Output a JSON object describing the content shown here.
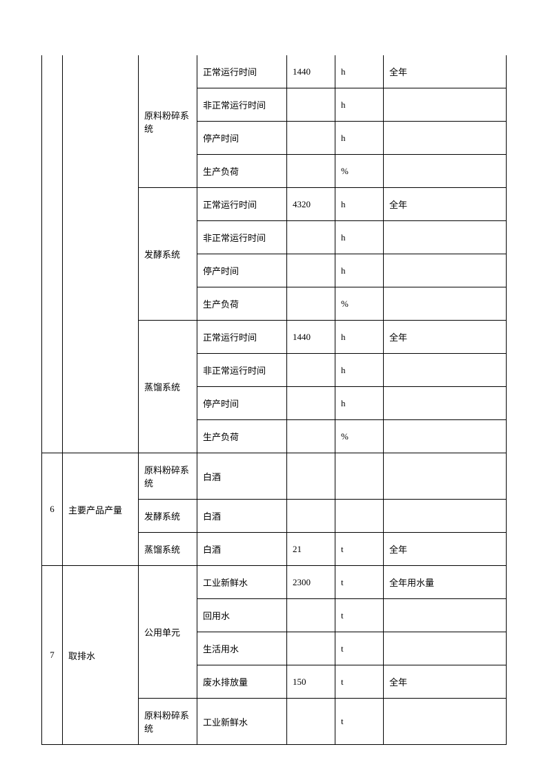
{
  "table": {
    "colors": {
      "border": "#000000",
      "background": "#ffffff",
      "text": "#000000"
    },
    "fontsize": 13,
    "sections": [
      {
        "num": "",
        "name": "",
        "groups": [
          {
            "system": "原料粉碎系统",
            "rows": [
              {
                "param": "正常运行时间",
                "value": "1440",
                "unit": "h",
                "note": "全年"
              },
              {
                "param": "非正常运行时间",
                "value": "",
                "unit": "h",
                "note": ""
              },
              {
                "param": "停产时间",
                "value": "",
                "unit": "h",
                "note": ""
              },
              {
                "param": "生产负荷",
                "value": "",
                "unit": "%",
                "note": ""
              }
            ]
          },
          {
            "system": "发酵系统",
            "rows": [
              {
                "param": "正常运行时间",
                "value": "4320",
                "unit": "h",
                "note": "全年"
              },
              {
                "param": "非正常运行时间",
                "value": "",
                "unit": "h",
                "note": ""
              },
              {
                "param": "停产时间",
                "value": "",
                "unit": "h",
                "note": ""
              },
              {
                "param": "生产负荷",
                "value": "",
                "unit": "%",
                "note": ""
              }
            ]
          },
          {
            "system": "蒸馏系统",
            "rows": [
              {
                "param": "正常运行时间",
                "value": "1440",
                "unit": "h",
                "note": "全年"
              },
              {
                "param": "非正常运行时间",
                "value": "",
                "unit": "h",
                "note": ""
              },
              {
                "param": "停产时间",
                "value": "",
                "unit": "h",
                "note": ""
              },
              {
                "param": "生产负荷",
                "value": "",
                "unit": "%",
                "note": ""
              }
            ]
          }
        ]
      },
      {
        "num": "6",
        "name": "主要产品产量",
        "groups": [
          {
            "system": "原料粉碎系统",
            "rows": [
              {
                "param": "白酒",
                "value": "",
                "unit": "",
                "note": ""
              }
            ]
          },
          {
            "system": "发酵系统",
            "rows": [
              {
                "param": "白酒",
                "value": "",
                "unit": "",
                "note": ""
              }
            ]
          },
          {
            "system": "蒸馏系统",
            "rows": [
              {
                "param": "白酒",
                "value": "21",
                "unit": "t",
                "note": "全年"
              }
            ]
          }
        ]
      },
      {
        "num": "7",
        "name": "取排水",
        "groups": [
          {
            "system": "公用单元",
            "rows": [
              {
                "param": "工业新鲜水",
                "value": "2300",
                "unit": "t",
                "note": "全年用水量"
              },
              {
                "param": "回用水",
                "value": "",
                "unit": "t",
                "note": ""
              },
              {
                "param": "生活用水",
                "value": "",
                "unit": "t",
                "note": ""
              },
              {
                "param": "废水排放量",
                "value": "150",
                "unit": "t",
                "note": "全年"
              }
            ]
          },
          {
            "system": "原料粉碎系统",
            "rows": [
              {
                "param": "工业新鲜水",
                "value": "",
                "unit": "t",
                "note": ""
              }
            ]
          }
        ]
      }
    ]
  }
}
